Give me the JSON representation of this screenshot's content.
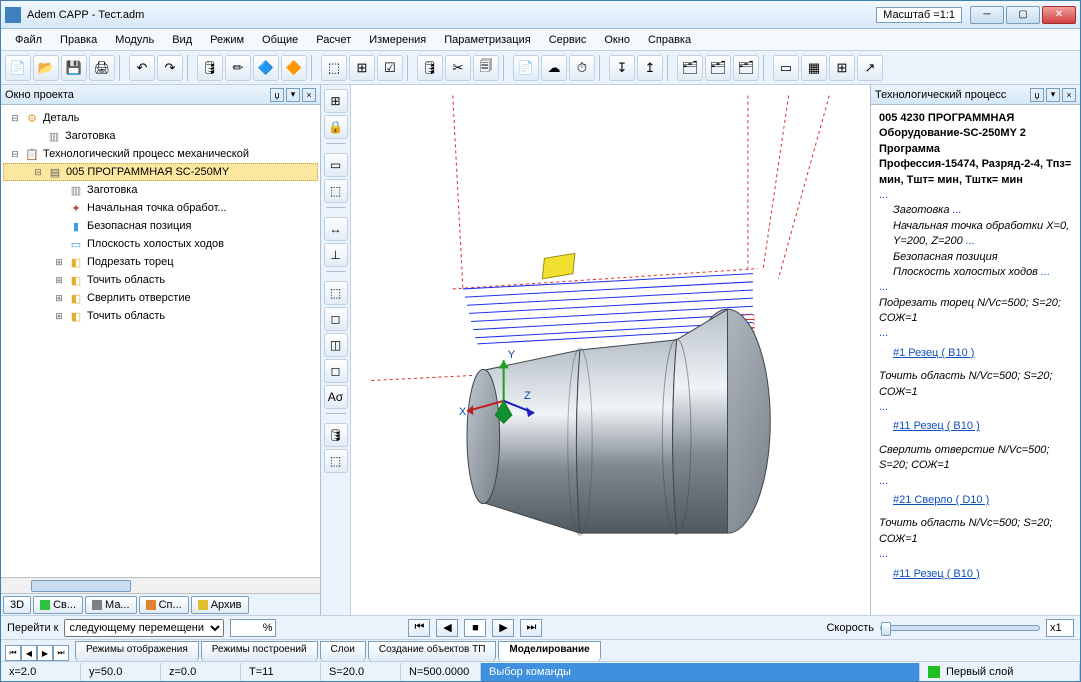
{
  "window": {
    "title": "Adem CAPP - Тест.adm",
    "scale_label": "Масштаб =1:1"
  },
  "menu": [
    "Файл",
    "Правка",
    "Модуль",
    "Вид",
    "Режим",
    "Общие",
    "Расчет",
    "Измерения",
    "Параметризация",
    "Сервис",
    "Окно",
    "Справка"
  ],
  "toolbar_icons": [
    "📄",
    "📂",
    "💾",
    "🖨",
    "↶",
    "↷",
    "🛢",
    "✏",
    "🔷",
    "🔶",
    "⬚",
    "⊞",
    "☑",
    "🛢",
    "✂",
    "🗐",
    "📄",
    "☁",
    "⏱",
    "↧",
    "↥",
    "🗂",
    "🗂",
    "🗂",
    "▭",
    "▦",
    "⊞",
    "↗"
  ],
  "left_toolbar_icons": [
    "⊞",
    "🔒",
    "▭",
    "⬚",
    "↔",
    "⊥",
    "⬚",
    "◻",
    "◫",
    "◻",
    "Aσ",
    "🛢",
    "⬚"
  ],
  "project_panel": {
    "title": "Окно проекта",
    "tree": [
      {
        "indent": 0,
        "exp": "⊟",
        "icon": "⚙",
        "color": "#e0a030",
        "text": "Деталь"
      },
      {
        "indent": 1,
        "exp": "",
        "icon": "▥",
        "color": "#808080",
        "text": "Заготовка"
      },
      {
        "indent": 0,
        "exp": "⊟",
        "icon": "📋",
        "color": "#4080c0",
        "text": "Технологический процесс механической"
      },
      {
        "indent": 1,
        "exp": "⊟",
        "icon": "▤",
        "color": "#606060",
        "text": "005  ПРОГРАММНАЯ SC-250MY",
        "sel": true
      },
      {
        "indent": 2,
        "exp": "",
        "icon": "▥",
        "color": "#808080",
        "text": "Заготовка"
      },
      {
        "indent": 2,
        "exp": "",
        "icon": "✦",
        "color": "#c04040",
        "text": "Начальная точка обработ..."
      },
      {
        "indent": 2,
        "exp": "",
        "icon": "▮",
        "color": "#40a0e0",
        "text": "Безопасная позиция"
      },
      {
        "indent": 2,
        "exp": "",
        "icon": "▭",
        "color": "#40a0e0",
        "text": "Плоскость холостых ходов"
      },
      {
        "indent": 2,
        "exp": "⊞",
        "icon": "◧",
        "color": "#e0b030",
        "text": "Подрезать торец"
      },
      {
        "indent": 2,
        "exp": "⊞",
        "icon": "◧",
        "color": "#e0b030",
        "text": "Точить область"
      },
      {
        "indent": 2,
        "exp": "⊞",
        "icon": "◧",
        "color": "#e0b030",
        "text": "Сверлить отверстие"
      },
      {
        "indent": 2,
        "exp": "⊞",
        "icon": "◧",
        "color": "#e0b030",
        "text": "Точить область"
      }
    ],
    "bottom_tabs": [
      {
        "label": "3D",
        "dot": ""
      },
      {
        "label": "Св...",
        "dot": "#30c040"
      },
      {
        "label": "Ма...",
        "dot": "#808080"
      },
      {
        "label": "Сп...",
        "dot": "#e08030"
      },
      {
        "label": "Архив",
        "dot": "#e0c030"
      }
    ]
  },
  "process_panel": {
    "title": "Технологический процесс",
    "content": {
      "head1": "005   4230 ПРОГРАММНАЯ",
      "head2": "Оборудование-SC-250MY   2 Программа",
      "head3": "Профессия-15474, Разряд-2-4, Тпз= мин,  Тшт= мин,  Тштк= мин",
      "items": [
        {
          "t": "Заготовка",
          "i": true,
          "dots": true,
          "indent": 1
        },
        {
          "t": "Начальная точка обработки X=0, Y=200, Z=200",
          "i": true,
          "dots": true,
          "indent": 1
        },
        {
          "t": "Безопасная позиция",
          "i": true,
          "dots": false,
          "indent": 1
        },
        {
          "t": "Плоскость холостых ходов",
          "i": true,
          "dots": true,
          "indent": 1
        },
        {
          "t": "Подрезать торец N/Vc=500; S=20; СОЖ=1",
          "i": true,
          "dots": true,
          "indent": 0,
          "before_dots": true
        },
        {
          "t": "#1 Резец ( В10 )",
          "link": true,
          "indent": 1,
          "before_dots": true
        },
        {
          "t": "Точить область N/Vc=500; S=20; СОЖ=1",
          "i": true,
          "dots": false,
          "indent": 0
        },
        {
          "t": "#11 Резец ( В10 )",
          "link": true,
          "indent": 1,
          "before_dots": true
        },
        {
          "t": "Сверлить отверстие N/Vc=500; S=20; СОЖ=1",
          "i": true,
          "dots": false,
          "indent": 0
        },
        {
          "t": "#21 Сверло ( D10 )",
          "link": true,
          "indent": 1,
          "before_dots": true
        },
        {
          "t": "Точить область N/Vc=500; S=20; СОЖ=1",
          "i": true,
          "dots": false,
          "indent": 0
        },
        {
          "t": "#11 Резец ( В10 )",
          "link": true,
          "indent": 1,
          "before_dots": true
        }
      ]
    }
  },
  "navbar": {
    "goto_label": "Перейти к",
    "goto_value": "следующему перемещени",
    "speed_label": "Скорость",
    "x_value": "x1",
    "percent": "%"
  },
  "bottom_tabs": [
    "Режимы отображения",
    "Режимы построений",
    "Слои",
    "Создание объектов ТП",
    "Моделирование"
  ],
  "bottom_active": 4,
  "status": {
    "x": "x=2.0",
    "y": "y=50.0",
    "z": "z=0.0",
    "T": "T=11",
    "S": "S=20.0",
    "N": "N=500.0000",
    "cmd": "Выбор команды",
    "layer": "Первый слой"
  },
  "viewport": {
    "axis_labels": {
      "x": "X",
      "y": "Y",
      "z": "Z"
    },
    "part_color": "#808890",
    "part_shadow": "#606870",
    "toolpath_color": "#2030f0",
    "rapid_color": "#e03030",
    "flag_color": "#f0e030"
  }
}
